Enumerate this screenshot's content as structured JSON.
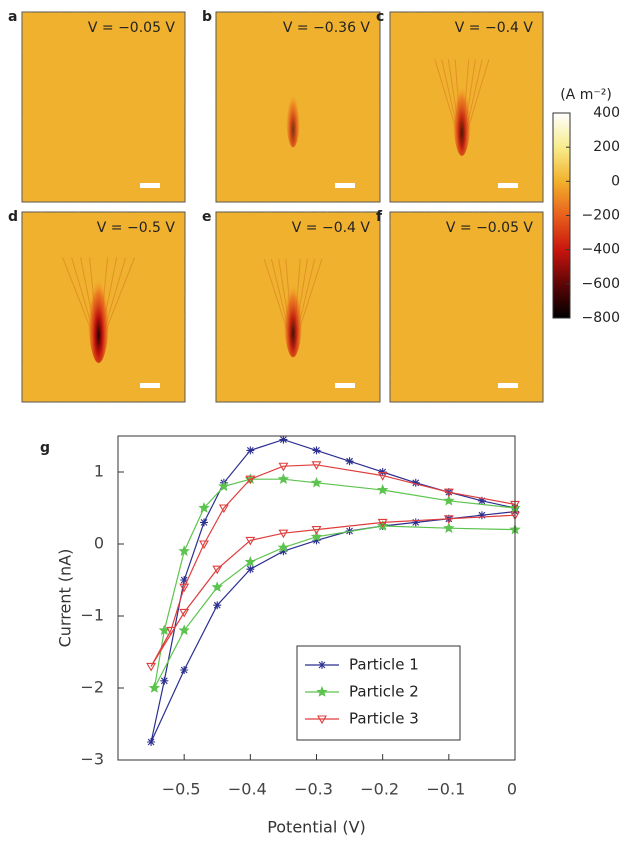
{
  "panels": [
    {
      "letter": "a",
      "label": "V = −0.05 V"
    },
    {
      "letter": "b",
      "label": "V = −0.36 V"
    },
    {
      "letter": "c",
      "label": "V = −0.4 V"
    },
    {
      "letter": "d",
      "label": "V = −0.5 V"
    },
    {
      "letter": "e",
      "label": "V = −0.4 V"
    },
    {
      "letter": "f",
      "label": "V = −0.05 V"
    }
  ],
  "colorbar": {
    "unit": "(A m⁻²)",
    "lim": [
      -800,
      400
    ],
    "ticks": [
      400,
      200,
      0,
      {
        "value": -200,
        "label": "−200"
      },
      {
        "value": -400,
        "label": "−400"
      },
      {
        "value": -600,
        "label": "−600"
      },
      {
        "value": -800,
        "label": "−800"
      }
    ]
  },
  "chart_data": {
    "type": "line",
    "panel_letter": "g",
    "xlabel": "Potential (V)",
    "ylabel": "Current (nA)",
    "xlim": [
      -0.6,
      0
    ],
    "xticks": [
      {
        "value": -0.5,
        "label": "−0.5"
      },
      {
        "value": -0.4,
        "label": "−0.4"
      },
      {
        "value": -0.3,
        "label": "−0.3"
      },
      {
        "value": -0.2,
        "label": "−0.2"
      },
      {
        "value": -0.1,
        "label": "−0.1"
      },
      0
    ],
    "ylim": [
      -3,
      1.5
    ],
    "yticks": [
      {
        "value": -3,
        "label": "−3"
      },
      {
        "value": -2,
        "label": "−2"
      },
      {
        "value": -1,
        "label": "−1"
      },
      0,
      1
    ],
    "series": [
      {
        "name": "Particle 1",
        "color": "#2b2f8f",
        "marker": "asterisk",
        "x": [
          0,
          -0.05,
          -0.1,
          -0.15,
          -0.2,
          -0.25,
          -0.3,
          -0.35,
          -0.4,
          -0.45,
          -0.5,
          -0.55,
          -0.53,
          -0.5,
          -0.47,
          -0.44,
          -0.4,
          -0.35,
          -0.3,
          -0.25,
          -0.2,
          -0.15,
          -0.1,
          -0.05,
          0
        ],
        "values": [
          0.45,
          0.4,
          0.35,
          0.3,
          0.25,
          0.18,
          0.05,
          -0.1,
          -0.35,
          -0.85,
          -1.75,
          -2.75,
          -1.9,
          -0.5,
          0.3,
          0.85,
          1.3,
          1.45,
          1.3,
          1.15,
          1.0,
          0.85,
          0.72,
          0.6,
          0.5
        ]
      },
      {
        "name": "Particle 2",
        "color": "#5cc44e",
        "marker": "star",
        "x": [
          0,
          -0.1,
          -0.2,
          -0.3,
          -0.35,
          -0.4,
          -0.45,
          -0.5,
          -0.545,
          -0.53,
          -0.5,
          -0.47,
          -0.44,
          -0.4,
          -0.35,
          -0.3,
          -0.2,
          -0.1,
          0
        ],
        "values": [
          0.2,
          0.22,
          0.25,
          0.1,
          -0.05,
          -0.25,
          -0.6,
          -1.2,
          -2.0,
          -1.2,
          -0.1,
          0.5,
          0.8,
          0.9,
          0.9,
          0.85,
          0.75,
          0.6,
          0.5
        ]
      },
      {
        "name": "Particle 3",
        "color": "#e03c3c",
        "marker": "triangle-down",
        "x": [
          0,
          -0.1,
          -0.2,
          -0.3,
          -0.35,
          -0.4,
          -0.45,
          -0.5,
          -0.55,
          -0.52,
          -0.5,
          -0.47,
          -0.44,
          -0.4,
          -0.35,
          -0.3,
          -0.2,
          -0.1,
          0
        ],
        "values": [
          0.4,
          0.35,
          0.3,
          0.2,
          0.15,
          0.05,
          -0.35,
          -0.95,
          -1.7,
          -1.2,
          -0.6,
          0.0,
          0.5,
          0.9,
          1.08,
          1.1,
          0.95,
          0.72,
          0.55
        ]
      }
    ],
    "legend": "lower-right"
  }
}
